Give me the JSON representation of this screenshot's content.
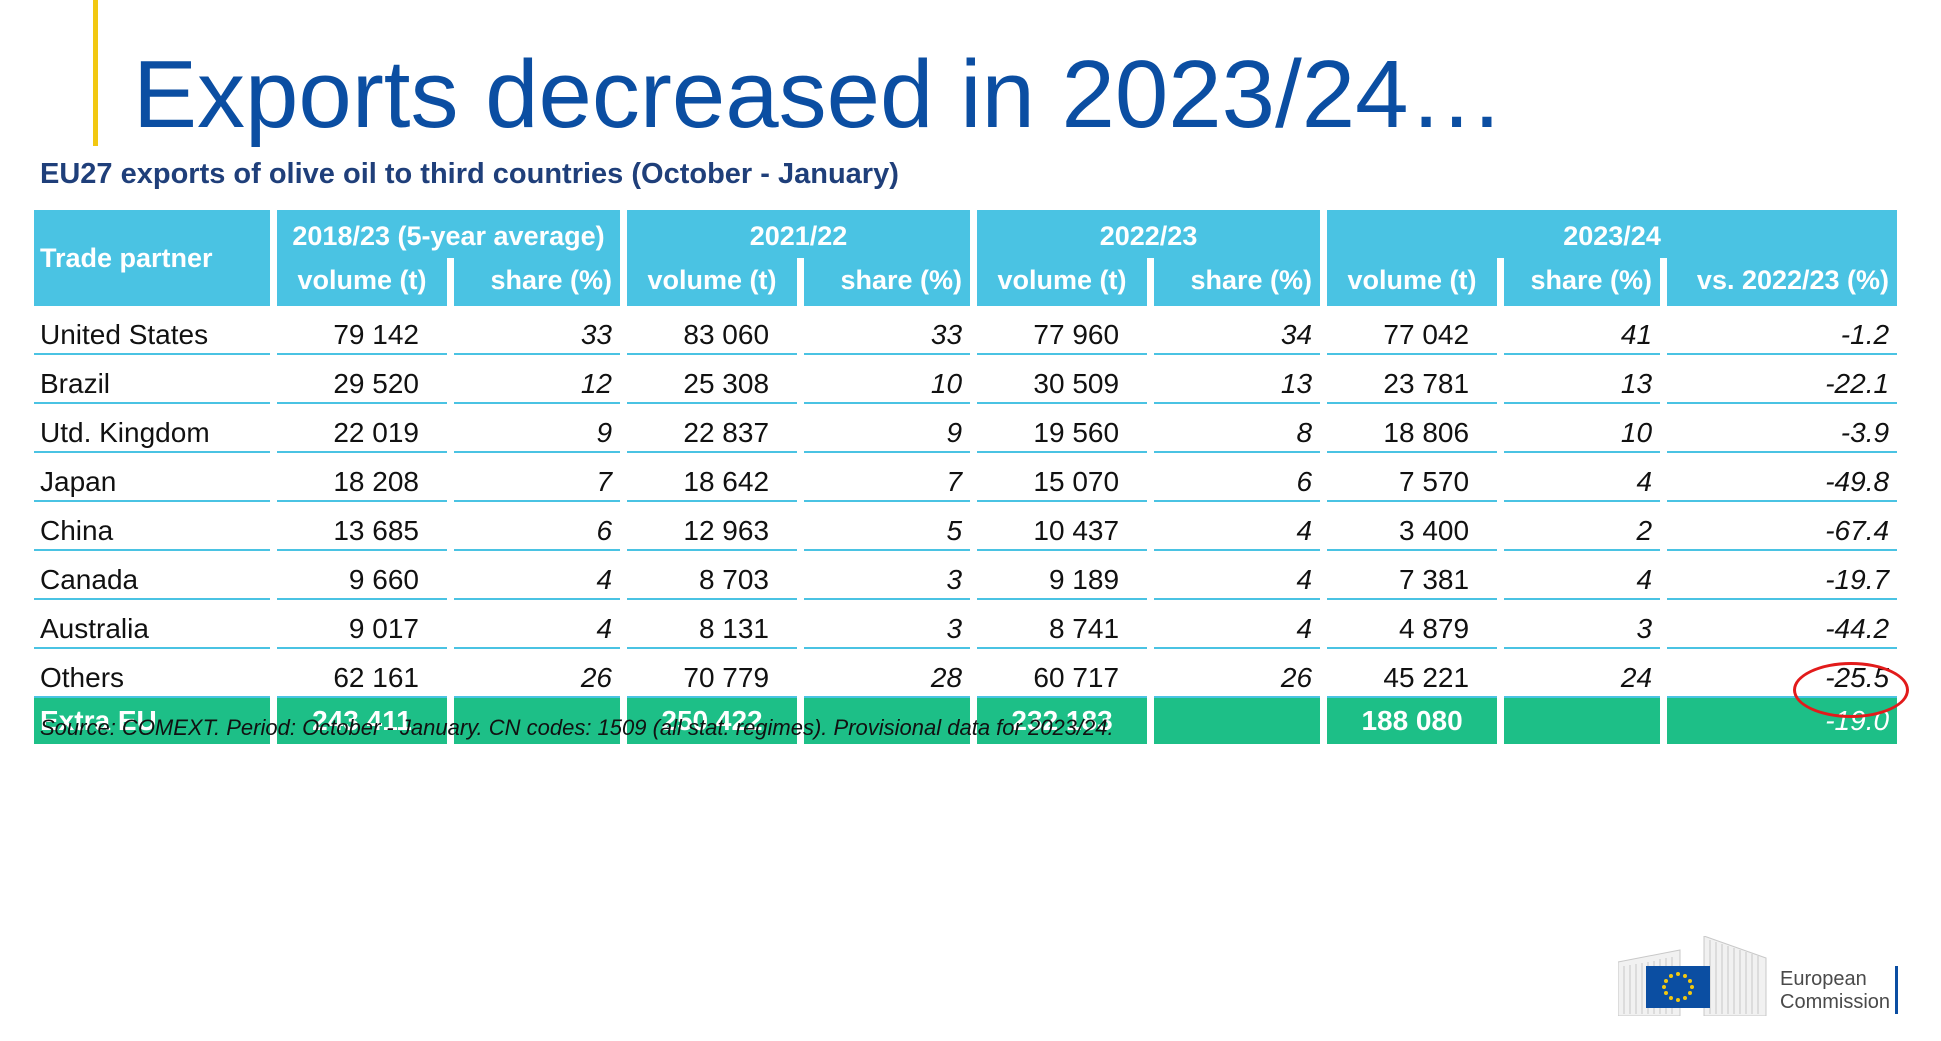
{
  "title": "Exports decreased in 2023/24…",
  "subtitle": "EU27 exports of olive oil to third countries (October - January)",
  "table": {
    "partner_header": "Trade partner",
    "groups": [
      {
        "label": "2018/23 (5-year average)",
        "cols": [
          "volume (t)",
          "share (%)"
        ]
      },
      {
        "label": "2021/22",
        "cols": [
          "volume (t)",
          "share (%)"
        ]
      },
      {
        "label": "2022/23",
        "cols": [
          "volume (t)",
          "share (%)"
        ]
      },
      {
        "label": "2023/24",
        "cols": [
          "volume (t)",
          "share (%)",
          "vs. 2022/23 (%)"
        ]
      }
    ],
    "rows": [
      {
        "name": "United States",
        "values": [
          "79 142",
          "33",
          "83 060",
          "33",
          "77 960",
          "34",
          "77 042",
          "41",
          "-1.2"
        ]
      },
      {
        "name": "Brazil",
        "values": [
          "29 520",
          "12",
          "25 308",
          "10",
          "30 509",
          "13",
          "23 781",
          "13",
          "-22.1"
        ]
      },
      {
        "name": "Utd. Kingdom",
        "values": [
          "22 019",
          "9",
          "22 837",
          "9",
          "19 560",
          "8",
          "18 806",
          "10",
          "-3.9"
        ]
      },
      {
        "name": "Japan",
        "values": [
          "18 208",
          "7",
          "18 642",
          "7",
          "15 070",
          "6",
          "7 570",
          "4",
          "-49.8"
        ]
      },
      {
        "name": "China",
        "values": [
          "13 685",
          "6",
          "12 963",
          "5",
          "10 437",
          "4",
          "3 400",
          "2",
          "-67.4"
        ]
      },
      {
        "name": "Canada",
        "values": [
          "9 660",
          "4",
          "8 703",
          "3",
          "9 189",
          "4",
          "7 381",
          "4",
          "-19.7"
        ]
      },
      {
        "name": "Australia",
        "values": [
          "9 017",
          "4",
          "8 131",
          "3",
          "8 741",
          "4",
          "4 879",
          "3",
          "-44.2"
        ]
      },
      {
        "name": "Others",
        "values": [
          "62 161",
          "26",
          "70 779",
          "28",
          "60 717",
          "26",
          "45 221",
          "24",
          "-25.5"
        ]
      }
    ],
    "total": {
      "name": "Extra EU",
      "values": [
        "243 411",
        "",
        "250 422",
        "",
        "232 183",
        "",
        "188 080",
        "",
        "-19.0"
      ]
    }
  },
  "source": "Source: COMEXT. Period: October - January. CN codes: 1509 (all stat. regimes). Provisional data for 2023/24.",
  "logo": {
    "line1": "European",
    "line2": "Commission"
  },
  "colors": {
    "title": "#0b4ea2",
    "header": "#4ac3e3",
    "total": "#1dbf87",
    "accent": "#f2c811",
    "highlight": "#e21b1b"
  }
}
